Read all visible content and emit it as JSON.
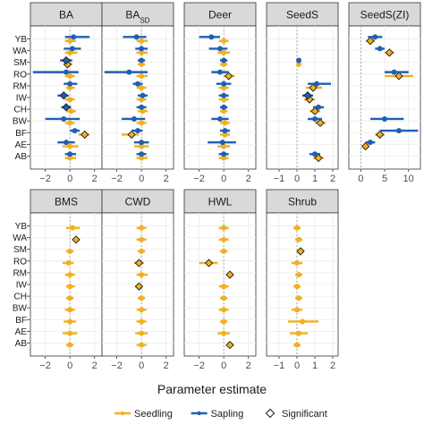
{
  "chart_data": {
    "type": "forest",
    "xlabel": "Parameter estimate",
    "categories": [
      "YB",
      "WA",
      "SM",
      "RO",
      "RM",
      "IW",
      "CH",
      "BW",
      "BF",
      "AE",
      "AB"
    ],
    "colors": {
      "Seedling": "#f2b01e",
      "Sapling": "#1f5fb4",
      "zero_line": "#9a9a9a",
      "strip_fill": "#d9d9d9"
    },
    "legend": {
      "position": "bottom",
      "items": [
        {
          "label": "Seedling",
          "key": "Seedling",
          "kind": "line"
        },
        {
          "label": "Sapling",
          "key": "Sapling",
          "kind": "line"
        },
        {
          "label": "Significant",
          "key": "Significant",
          "kind": "diamond"
        }
      ]
    },
    "panels": [
      {
        "title": "BA",
        "subscript": "",
        "row": 0,
        "col": 0,
        "xlim": [
          -3.2,
          2.6
        ],
        "xticks": [
          -2,
          0,
          2
        ],
        "xtick_labels": [
          "−2",
          "0",
          "2"
        ],
        "Seedling": [
          [
            0,
            -0.4,
            0.5,
            0
          ],
          [
            0,
            -0.4,
            0.6,
            0
          ],
          [
            -0.2,
            -0.5,
            0.2,
            1
          ],
          [
            0,
            -0.4,
            0.4,
            0
          ],
          [
            0,
            -0.3,
            0.4,
            0
          ],
          [
            0,
            -0.4,
            0.4,
            0
          ],
          [
            0.1,
            -0.3,
            0.5,
            0
          ],
          [
            0,
            -0.4,
            0.4,
            0
          ],
          [
            1.2,
            0.7,
            1.6,
            1
          ],
          [
            0,
            -0.6,
            0.7,
            0
          ],
          [
            0,
            -0.4,
            0.5,
            0
          ]
        ],
        "Sapling": [
          [
            0.3,
            -0.4,
            1.6,
            0
          ],
          [
            0.2,
            -0.5,
            0.9,
            0
          ],
          [
            -0.3,
            -0.8,
            0.2,
            1
          ],
          [
            -0.3,
            -3.0,
            0.7,
            0
          ],
          [
            0,
            -0.5,
            0.6,
            0
          ],
          [
            -0.5,
            -1.0,
            -0.1,
            1
          ],
          [
            -0.3,
            -0.7,
            0.1,
            1
          ],
          [
            -0.5,
            -2.0,
            0.8,
            0
          ],
          [
            0.4,
            0,
            0.8,
            0
          ],
          [
            -0.3,
            -1.0,
            0.4,
            0
          ],
          [
            0,
            -0.4,
            0.5,
            0
          ]
        ]
      },
      {
        "title": "BA",
        "subscript": "SD",
        "row": 0,
        "col": 1,
        "xlim": [
          -3.2,
          2.6
        ],
        "xticks": [
          -2,
          0,
          2
        ],
        "xtick_labels": [
          "−2",
          "0",
          "2"
        ],
        "Seedling": [
          [
            0,
            -0.4,
            0.5,
            0
          ],
          [
            0,
            -0.4,
            0.5,
            0
          ],
          [
            0,
            -0.3,
            0.3,
            0
          ],
          [
            0,
            -0.4,
            0.5,
            0
          ],
          [
            0,
            -0.4,
            0.4,
            0
          ],
          [
            0,
            -0.4,
            0.4,
            0
          ],
          [
            0.1,
            -0.3,
            0.5,
            0
          ],
          [
            0,
            -0.4,
            0.4,
            0
          ],
          [
            -0.8,
            -1.6,
            -0.2,
            1
          ],
          [
            0,
            -0.6,
            0.6,
            0
          ],
          [
            0,
            -0.4,
            0.5,
            0
          ]
        ],
        "Sapling": [
          [
            -0.4,
            -1.5,
            0.4,
            0
          ],
          [
            0,
            -0.5,
            0.5,
            0
          ],
          [
            0,
            -0.3,
            0.3,
            0
          ],
          [
            -1.0,
            -3.0,
            0.5,
            0
          ],
          [
            -0.3,
            -0.7,
            0.1,
            0
          ],
          [
            0.1,
            -0.3,
            0.5,
            0
          ],
          [
            0,
            -0.4,
            0.4,
            0
          ],
          [
            -0.6,
            -1.6,
            0.3,
            0
          ],
          [
            -0.3,
            -0.8,
            0.1,
            0
          ],
          [
            0,
            -0.6,
            0.6,
            0
          ],
          [
            0,
            -0.4,
            0.4,
            0
          ]
        ]
      },
      {
        "title": "Deer",
        "subscript": "",
        "row": 0,
        "col": 2,
        "xlim": [
          -3.2,
          2.6
        ],
        "xticks": [
          -2,
          0,
          2
        ],
        "xtick_labels": [
          "−2",
          "0",
          "2"
        ],
        "Seedling": [
          [
            0,
            -0.4,
            0.4,
            0
          ],
          [
            0,
            -0.5,
            0.5,
            0
          ],
          [
            0,
            -0.3,
            0.3,
            0
          ],
          [
            0.4,
            0,
            0.9,
            1
          ],
          [
            0,
            -0.4,
            0.4,
            0
          ],
          [
            0,
            -0.4,
            0.4,
            0
          ],
          [
            0,
            -0.3,
            0.3,
            0
          ],
          [
            0.1,
            -0.3,
            0.5,
            0
          ],
          [
            0.1,
            -0.3,
            0.5,
            0
          ],
          [
            0,
            -0.5,
            0.5,
            0
          ],
          [
            0,
            -0.4,
            0.4,
            0
          ]
        ],
        "Sapling": [
          [
            -1.0,
            -2.0,
            -0.3,
            0
          ],
          [
            -0.3,
            -1.2,
            0.3,
            0
          ],
          [
            0,
            -0.3,
            0.3,
            0
          ],
          [
            -0.3,
            -1.0,
            0.4,
            0
          ],
          [
            0,
            -0.6,
            0.6,
            0
          ],
          [
            0,
            -0.4,
            0.4,
            0
          ],
          [
            0,
            -0.3,
            0.3,
            0
          ],
          [
            -0.3,
            -1.0,
            0.4,
            0
          ],
          [
            0.1,
            -0.3,
            0.5,
            0
          ],
          [
            -0.1,
            -1.3,
            1.0,
            0
          ],
          [
            0,
            -0.4,
            0.4,
            0
          ]
        ]
      },
      {
        "title": "SeedS",
        "subscript": "",
        "row": 0,
        "col": 3,
        "xlim": [
          -1.7,
          2.3
        ],
        "xticks": [
          -1,
          0,
          1,
          2
        ],
        "xtick_labels": [
          "−1",
          "0",
          "1",
          "2"
        ],
        "Seedling": [
          null,
          null,
          [
            0.1,
            0,
            0.2,
            0
          ],
          null,
          [
            0.9,
            0.5,
            1.4,
            1
          ],
          [
            0.7,
            0.4,
            1.0,
            1
          ],
          [
            1.0,
            0.7,
            1.3,
            1
          ],
          [
            1.3,
            1.0,
            1.6,
            1
          ],
          null,
          null,
          [
            1.2,
            0.9,
            1.5,
            1
          ]
        ],
        "Sapling": [
          null,
          null,
          [
            0.1,
            0,
            0.2,
            0
          ],
          null,
          [
            1.1,
            0.6,
            1.9,
            0
          ],
          [
            0.6,
            0.3,
            0.9,
            1
          ],
          [
            1.2,
            0.9,
            1.5,
            0
          ],
          [
            1.0,
            0.6,
            1.4,
            0
          ],
          null,
          null,
          [
            1.0,
            0.7,
            1.3,
            0
          ]
        ]
      },
      {
        "title": "SeedS(ZI)",
        "subscript": "",
        "row": 0,
        "col": 4,
        "xlim": [
          -2.5,
          12.5
        ],
        "xticks": [
          0,
          5,
          10
        ],
        "xtick_labels": [
          "0",
          "5",
          "10"
        ],
        "Seedling": [
          [
            2,
            1,
            3,
            1
          ],
          [
            6,
            5,
            7,
            1
          ],
          null,
          [
            8,
            5,
            11,
            1
          ],
          null,
          null,
          null,
          null,
          [
            4,
            3,
            5,
            1
          ],
          [
            1,
            0.5,
            1.5,
            1
          ],
          null
        ],
        "Sapling": [
          [
            3,
            1.5,
            4.5,
            0
          ],
          [
            4,
            3,
            5,
            0
          ],
          null,
          [
            7,
            5,
            10,
            0
          ],
          null,
          null,
          null,
          [
            5,
            2,
            9,
            0
          ],
          [
            8,
            4,
            12,
            0
          ],
          [
            2,
            1,
            3,
            0
          ],
          null
        ]
      },
      {
        "title": "BMS",
        "subscript": "",
        "row": 1,
        "col": 0,
        "xlim": [
          -3.2,
          2.6
        ],
        "xticks": [
          -2,
          0,
          2
        ],
        "xtick_labels": [
          "−2",
          "0",
          "2"
        ],
        "Seedling": [
          [
            0.2,
            -0.3,
            0.8,
            0
          ],
          [
            0.5,
            0.2,
            0.8,
            1
          ],
          [
            0,
            -0.3,
            0.3,
            0
          ],
          [
            -0.1,
            -0.6,
            0.3,
            0
          ],
          [
            0,
            -0.4,
            0.4,
            0
          ],
          [
            0,
            -0.3,
            0.4,
            0
          ],
          [
            0,
            -0.3,
            0.3,
            0
          ],
          [
            0,
            -0.4,
            0.4,
            0
          ],
          [
            0,
            -0.5,
            0.5,
            0
          ],
          [
            0,
            -0.6,
            0.6,
            0
          ],
          [
            0,
            -0.3,
            0.3,
            0
          ]
        ],
        "Sapling": []
      },
      {
        "title": "CWD",
        "subscript": "",
        "row": 1,
        "col": 1,
        "xlim": [
          -3.2,
          2.6
        ],
        "xticks": [
          -2,
          0,
          2
        ],
        "xtick_labels": [
          "−2",
          "0",
          "2"
        ],
        "Seedling": [
          [
            0,
            -0.4,
            0.4,
            0
          ],
          [
            0,
            -0.4,
            0.4,
            0
          ],
          [
            0,
            -0.3,
            0.3,
            0
          ],
          [
            -0.2,
            -0.6,
            0.2,
            1
          ],
          [
            0,
            -0.4,
            0.5,
            0
          ],
          [
            -0.2,
            -0.5,
            0.1,
            1
          ],
          [
            0,
            -0.3,
            0.3,
            0
          ],
          [
            0,
            -0.4,
            0.4,
            0
          ],
          [
            0,
            -0.4,
            0.4,
            0
          ],
          [
            0,
            -0.5,
            0.5,
            0
          ],
          [
            0,
            -0.4,
            0.4,
            0
          ]
        ],
        "Sapling": []
      },
      {
        "title": "HWL",
        "subscript": "",
        "row": 1,
        "col": 2,
        "xlim": [
          -3.2,
          2.6
        ],
        "xticks": [
          -2,
          0,
          2
        ],
        "xtick_labels": [
          "−2",
          "0",
          "2"
        ],
        "Seedling": [
          [
            0,
            -0.4,
            0.4,
            0
          ],
          [
            0,
            -0.4,
            0.4,
            0
          ],
          [
            0,
            -0.3,
            0.3,
            0
          ],
          [
            -1.2,
            -2.0,
            -0.5,
            1
          ],
          [
            0.5,
            0.2,
            0.8,
            1
          ],
          [
            0,
            -0.4,
            0.4,
            0
          ],
          [
            0,
            -0.3,
            0.3,
            0
          ],
          [
            0,
            -0.4,
            0.4,
            0
          ],
          [
            0,
            -0.3,
            0.3,
            0
          ],
          [
            0,
            -0.5,
            0.5,
            0
          ],
          [
            0.5,
            0.2,
            0.8,
            1
          ]
        ],
        "Sapling": []
      },
      {
        "title": "Shrub",
        "subscript": "",
        "row": 1,
        "col": 3,
        "xlim": [
          -1.7,
          2.3
        ],
        "xticks": [
          -1,
          0,
          1,
          2
        ],
        "xtick_labels": [
          "−1",
          "0",
          "1",
          "2"
        ],
        "Seedling": [
          [
            0,
            -0.2,
            0.2,
            0
          ],
          [
            0.1,
            -0.1,
            0.3,
            0
          ],
          [
            0.2,
            0.1,
            0.3,
            1
          ],
          [
            0,
            -0.3,
            0.3,
            0
          ],
          [
            0.1,
            -0.1,
            0.3,
            0
          ],
          [
            0,
            -0.2,
            0.2,
            0
          ],
          [
            0.1,
            -0.1,
            0.3,
            0
          ],
          [
            0,
            -0.3,
            0.3,
            0
          ],
          [
            0.3,
            -0.5,
            1.2,
            0
          ],
          [
            0.1,
            -0.4,
            0.6,
            0
          ],
          [
            0,
            -0.2,
            0.2,
            0
          ]
        ],
        "Sapling": []
      }
    ]
  }
}
